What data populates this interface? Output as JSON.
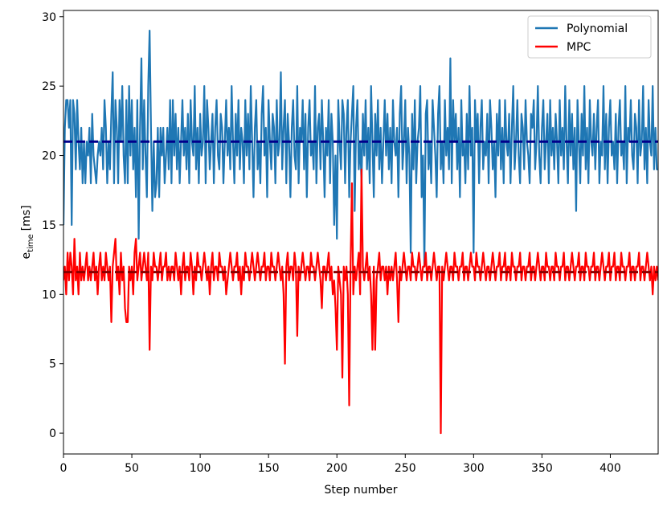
{
  "chart_data": {
    "type": "line",
    "xlabel": "Step number",
    "ylabel_main": "e",
    "ylabel_sub": "time",
    "ylabel_unit": "[ms]",
    "xlim": [
      0,
      435
    ],
    "xticks": [
      0,
      50,
      100,
      150,
      200,
      250,
      300,
      350,
      400
    ],
    "ylim": [
      -1.5,
      30.45
    ],
    "yticks": [
      0,
      5,
      10,
      15,
      20,
      25,
      30
    ],
    "legend": "upper right",
    "hlines": [
      {
        "value": 21,
        "color": "#00008b"
      },
      {
        "value": 11.6,
        "color": "#8b0000"
      }
    ],
    "series": [
      {
        "name": "Polynomial",
        "color": "#1f77b4",
        "values": [
          15,
          22,
          24,
          24,
          22,
          24,
          15,
          24,
          23,
          19,
          24,
          21,
          19,
          22,
          18,
          21,
          18,
          21,
          20,
          22,
          18,
          23,
          20,
          19,
          18,
          20,
          21,
          20,
          22,
          19,
          24,
          22,
          18,
          21,
          19,
          23,
          26,
          18,
          24,
          22,
          18,
          24,
          21,
          25,
          20,
          18,
          24,
          18,
          25,
          20,
          24,
          19,
          22,
          17,
          24,
          14,
          22,
          27,
          19,
          24,
          20,
          17,
          25,
          29,
          22,
          16,
          21,
          17,
          18,
          22,
          17,
          22,
          20,
          22,
          18,
          20,
          22,
          19,
          24,
          18,
          24,
          20,
          23,
          19,
          22,
          18,
          21,
          24,
          20,
          22,
          19,
          23,
          18,
          24,
          21,
          20,
          25,
          19,
          22,
          18,
          23,
          20,
          21,
          25,
          18,
          24,
          22,
          19,
          21,
          23,
          18,
          22,
          24,
          20,
          19,
          23,
          22,
          18,
          21,
          24,
          20,
          22,
          19,
          25,
          21,
          18,
          23,
          20,
          24,
          19,
          22,
          21,
          18,
          24,
          20,
          23,
          19,
          25,
          21,
          17,
          22,
          24,
          19,
          21,
          18,
          23,
          25,
          20,
          22,
          17,
          24,
          21,
          19,
          23,
          22,
          18,
          24,
          20,
          21,
          26,
          19,
          22,
          24,
          18,
          23,
          21,
          17,
          22,
          24,
          20,
          19,
          25,
          18,
          22,
          21,
          24,
          19,
          23,
          17,
          22,
          24,
          20,
          21,
          19,
          25,
          18,
          22,
          23,
          19,
          24,
          21,
          17,
          22,
          20,
          24,
          18,
          23,
          21,
          15,
          20,
          14,
          24,
          21,
          19,
          24,
          23,
          18,
          22,
          24,
          17,
          21,
          23,
          25,
          16,
          22,
          24,
          19,
          21,
          18,
          23,
          20,
          24,
          19,
          22,
          18,
          25,
          21,
          17,
          23,
          20,
          24,
          19,
          22,
          18,
          21,
          24,
          20,
          23,
          19,
          22,
          18,
          24,
          21,
          20,
          22,
          17,
          23,
          25,
          19,
          21,
          24,
          18,
          22,
          20,
          13,
          23,
          19,
          24,
          18,
          21,
          22,
          25,
          17,
          20,
          12,
          23,
          24,
          19,
          21,
          18,
          24,
          22,
          20,
          17,
          23,
          25,
          19,
          21,
          18,
          24,
          20,
          22,
          19,
          27,
          18,
          24,
          21,
          23,
          19,
          22,
          17,
          24,
          20,
          21,
          18,
          23,
          19,
          25,
          20,
          22,
          13,
          24,
          21,
          23,
          18,
          22,
          24,
          19,
          21,
          20,
          23,
          18,
          24,
          22,
          19,
          21,
          17,
          23,
          20,
          24,
          19,
          22,
          18,
          24,
          21,
          20,
          23,
          18,
          22,
          25,
          19,
          21,
          24,
          20,
          18,
          23,
          22,
          19,
          24,
          21,
          20,
          18,
          23,
          22,
          24,
          19,
          21,
          25,
          20,
          18,
          22,
          24,
          19,
          21,
          23,
          18,
          24,
          20,
          22,
          19,
          23,
          21,
          18,
          24,
          20,
          22,
          19,
          25,
          21,
          18,
          24,
          20,
          23,
          19,
          22,
          16,
          24,
          21,
          18,
          23,
          20,
          25,
          19,
          22,
          18,
          24,
          21,
          20,
          23,
          19,
          22,
          24,
          18,
          21,
          20,
          25,
          19,
          23,
          18,
          22,
          24,
          20,
          21,
          19,
          23,
          18,
          22,
          24,
          20,
          21,
          19,
          25,
          18,
          22,
          21,
          24,
          20,
          19,
          23,
          22,
          18,
          24,
          20,
          21,
          25,
          19,
          22,
          18,
          24,
          21,
          20,
          25,
          19,
          22,
          19,
          19
        ]
      },
      {
        "name": "MPC",
        "color": "#ff0000",
        "values": [
          11,
          12,
          10,
          13,
          11,
          13,
          12,
          10,
          14,
          11,
          12,
          10,
          13,
          11,
          12,
          11,
          12,
          13,
          11,
          12,
          11,
          12,
          13,
          11,
          12,
          10,
          12,
          13,
          11,
          12,
          11,
          13,
          12,
          11,
          12,
          8,
          12,
          13,
          14,
          11,
          12,
          10,
          13,
          11,
          12,
          9,
          8,
          8,
          12,
          11,
          12,
          10,
          13,
          14,
          11,
          12,
          13,
          11,
          12,
          13,
          12,
          11,
          13,
          6,
          12,
          11,
          13,
          12,
          12,
          11,
          12,
          13,
          11,
          12,
          12,
          13,
          11,
          12,
          11,
          12,
          12,
          11,
          13,
          12,
          11,
          12,
          10,
          12,
          13,
          11,
          12,
          12,
          11,
          13,
          12,
          10,
          12,
          11,
          13,
          12,
          12,
          11,
          12,
          13,
          12,
          11,
          12,
          10,
          12,
          13,
          11,
          12,
          12,
          11,
          13,
          12,
          12,
          11,
          12,
          10,
          11,
          12,
          13,
          12,
          11,
          12,
          12,
          13,
          11,
          12,
          10,
          12,
          11,
          13,
          12,
          12,
          11,
          12,
          13,
          12,
          11,
          12,
          13,
          12,
          11,
          12,
          12,
          13,
          11,
          12,
          12,
          11,
          13,
          12,
          12,
          11,
          12,
          13,
          12,
          11,
          12,
          10,
          5,
          12,
          13,
          11,
          12,
          12,
          11,
          13,
          12,
          7,
          12,
          11,
          12,
          13,
          12,
          11,
          12,
          12,
          11,
          13,
          12,
          12,
          11,
          12,
          13,
          12,
          11,
          9,
          12,
          12,
          11,
          12,
          13,
          11,
          12,
          10,
          11,
          9,
          6,
          12,
          11,
          10,
          4,
          12,
          11,
          12,
          10,
          2,
          12,
          18,
          10,
          12,
          11,
          12,
          13,
          10,
          19,
          12,
          11,
          12,
          13,
          11,
          12,
          10,
          6,
          12,
          6,
          11,
          12,
          13,
          11,
          12,
          12,
          11,
          12,
          10,
          12,
          11,
          12,
          11,
          12,
          13,
          11,
          8,
          12,
          11,
          12,
          13,
          12,
          11,
          12,
          12,
          11,
          13,
          12,
          12,
          11,
          12,
          13,
          12,
          11,
          12,
          12,
          13,
          11,
          12,
          12,
          11,
          12,
          13,
          12,
          11,
          12,
          12,
          0,
          12,
          11,
          12,
          13,
          12,
          11,
          12,
          12,
          11,
          13,
          12,
          12,
          11,
          12,
          12,
          13,
          11,
          12,
          12,
          11,
          12,
          13,
          12,
          12,
          11,
          13,
          12,
          12,
          11,
          12,
          13,
          12,
          11,
          12,
          12,
          11,
          12,
          13,
          12,
          11,
          12,
          12,
          13,
          11,
          12,
          12,
          13,
          11,
          12,
          12,
          11,
          13,
          12,
          12,
          11,
          12,
          12,
          13,
          11,
          12,
          12,
          11,
          12,
          12,
          13,
          11,
          12,
          12,
          11,
          12,
          13,
          12,
          11,
          12,
          12,
          11,
          13,
          12,
          12,
          11,
          12,
          12,
          11,
          13,
          12,
          12,
          11,
          12,
          12,
          13,
          11,
          12,
          12,
          11,
          12,
          13,
          12,
          11,
          12,
          12,
          13,
          11,
          12,
          12,
          11,
          13,
          12,
          12,
          11,
          12,
          12,
          13,
          11,
          12,
          12,
          11,
          12,
          13,
          12,
          11,
          12,
          12,
          13,
          11,
          12,
          12,
          13,
          11,
          12,
          12,
          11,
          13,
          12,
          12,
          11,
          12,
          12,
          13,
          11,
          12,
          12,
          11,
          12,
          12,
          13,
          11,
          12,
          12,
          11,
          12,
          13,
          12,
          11,
          12,
          10,
          12,
          11,
          12,
          11
        ]
      }
    ]
  }
}
